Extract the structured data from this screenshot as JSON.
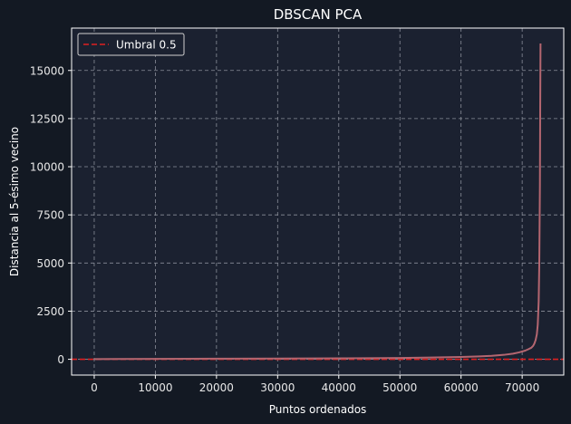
{
  "chart_data": {
    "type": "line",
    "title": "DBSCAN PCA",
    "xlabel": "Puntos ordenados",
    "ylabel": "Distancia al 5-ésimo vecino",
    "xlim": [
      -3700,
      76800
    ],
    "ylim": [
      -820,
      17200
    ],
    "xticks": [
      0,
      10000,
      20000,
      30000,
      40000,
      50000,
      60000,
      70000
    ],
    "yticks": [
      0,
      2500,
      5000,
      7500,
      10000,
      12500,
      15000
    ],
    "grid": true,
    "legend_position": "top-left",
    "series": [
      {
        "x": [
          0,
          10000,
          20000,
          30000,
          40000,
          50000,
          55000,
          60000,
          63000,
          65000,
          67000,
          68500,
          69500,
          70500,
          71000,
          71500,
          71800,
          72000,
          72200,
          72400,
          72550,
          72700,
          72800,
          72900,
          72950,
          73000
        ],
        "y": [
          10,
          20,
          30,
          40,
          50,
          70,
          90,
          120,
          150,
          180,
          230,
          290,
          360,
          450,
          520,
          600,
          700,
          820,
          1000,
          1300,
          1800,
          3000,
          5000,
          9000,
          13000,
          16400
        ],
        "color": "#b46670"
      }
    ],
    "reference_lines": [
      {
        "name": "Umbral 0.5",
        "y": 0.5,
        "color": "#e02020",
        "style": "dashed"
      }
    ]
  },
  "colors": {
    "background": "#131923",
    "plot_background": "#1b2130",
    "grid": "#8a8e99",
    "axes": "#ffffff"
  }
}
